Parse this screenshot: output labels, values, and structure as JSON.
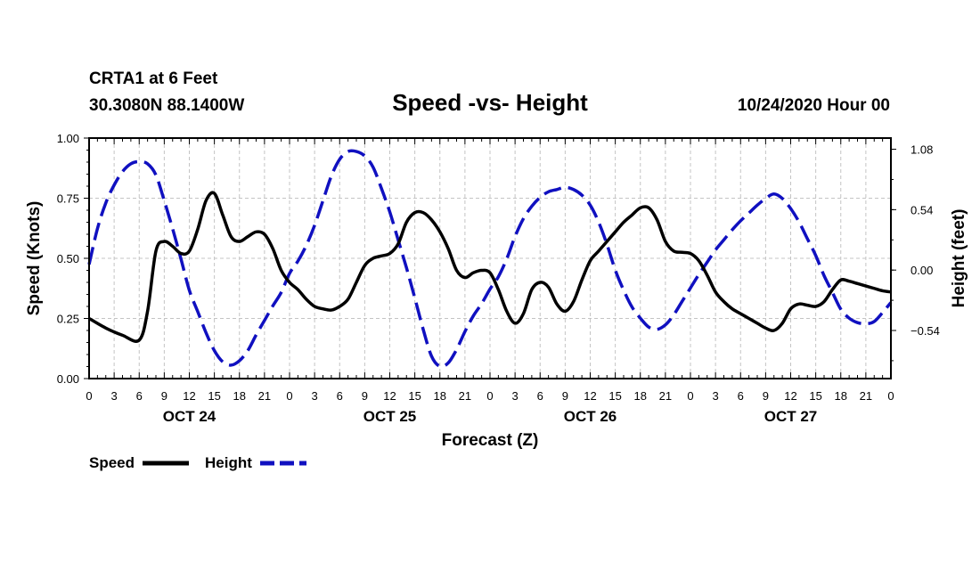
{
  "chart_data": {
    "type": "line",
    "header": {
      "station": "CRTA1 at 6 Feet",
      "coords": "30.3080N 88.1400W",
      "title": "Speed -vs- Height",
      "date": "10/24/2020 Hour 00"
    },
    "xlabel": "Forecast (Z)",
    "ylabel_left": "Speed (Knots)",
    "ylabel_right": "Height (feet)",
    "xlim": [
      0,
      96
    ],
    "ylim_left": [
      0,
      1
    ],
    "ylim_right": [
      -0.97,
      1.18
    ],
    "x_ticks": [
      {
        "x": 0,
        "label": "0"
      },
      {
        "x": 3,
        "label": "3"
      },
      {
        "x": 6,
        "label": "6"
      },
      {
        "x": 9,
        "label": "9"
      },
      {
        "x": 12,
        "label": "12"
      },
      {
        "x": 15,
        "label": "15"
      },
      {
        "x": 18,
        "label": "18"
      },
      {
        "x": 21,
        "label": "21"
      },
      {
        "x": 24,
        "label": "0"
      },
      {
        "x": 27,
        "label": "3"
      },
      {
        "x": 30,
        "label": "6"
      },
      {
        "x": 33,
        "label": "9"
      },
      {
        "x": 36,
        "label": "12"
      },
      {
        "x": 39,
        "label": "15"
      },
      {
        "x": 42,
        "label": "18"
      },
      {
        "x": 45,
        "label": "21"
      },
      {
        "x": 48,
        "label": "0"
      },
      {
        "x": 51,
        "label": "3"
      },
      {
        "x": 54,
        "label": "6"
      },
      {
        "x": 57,
        "label": "9"
      },
      {
        "x": 60,
        "label": "12"
      },
      {
        "x": 63,
        "label": "15"
      },
      {
        "x": 66,
        "label": "18"
      },
      {
        "x": 69,
        "label": "21"
      },
      {
        "x": 72,
        "label": "0"
      },
      {
        "x": 75,
        "label": "3"
      },
      {
        "x": 78,
        "label": "6"
      },
      {
        "x": 81,
        "label": "9"
      },
      {
        "x": 84,
        "label": "12"
      },
      {
        "x": 87,
        "label": "15"
      },
      {
        "x": 90,
        "label": "18"
      },
      {
        "x": 93,
        "label": "21"
      },
      {
        "x": 96,
        "label": "0"
      }
    ],
    "day_labels": [
      {
        "x": 12,
        "label": "OCT 24"
      },
      {
        "x": 36,
        "label": "OCT 25"
      },
      {
        "x": 60,
        "label": "OCT 26"
      },
      {
        "x": 84,
        "label": "OCT 27"
      }
    ],
    "y_ticks_left": [
      {
        "v": 0,
        "label": "0.00"
      },
      {
        "v": 0.25,
        "label": "0.25"
      },
      {
        "v": 0.5,
        "label": "0.50"
      },
      {
        "v": 0.75,
        "label": "0.75"
      },
      {
        "v": 1,
        "label": "1.00"
      }
    ],
    "y_ticks_right": [
      {
        "v": -0.54,
        "label": "−0.54"
      },
      {
        "v": 0,
        "label": "0.00"
      },
      {
        "v": 0.54,
        "label": "0.54"
      },
      {
        "v": 1.08,
        "label": "1.08"
      }
    ],
    "series": [
      {
        "name": "Speed",
        "axis": "left",
        "color": "#000000",
        "style": "solid",
        "points": [
          [
            0,
            0.25
          ],
          [
            2,
            0.21
          ],
          [
            4,
            0.18
          ],
          [
            6,
            0.16
          ],
          [
            7,
            0.28
          ],
          [
            8,
            0.53
          ],
          [
            9,
            0.57
          ],
          [
            10,
            0.55
          ],
          [
            11,
            0.52
          ],
          [
            12,
            0.53
          ],
          [
            13,
            0.62
          ],
          [
            14,
            0.74
          ],
          [
            15,
            0.77
          ],
          [
            16,
            0.68
          ],
          [
            17,
            0.59
          ],
          [
            18,
            0.57
          ],
          [
            19,
            0.59
          ],
          [
            20,
            0.61
          ],
          [
            21,
            0.6
          ],
          [
            22,
            0.54
          ],
          [
            23,
            0.45
          ],
          [
            24,
            0.4
          ],
          [
            25,
            0.37
          ],
          [
            26,
            0.33
          ],
          [
            27,
            0.3
          ],
          [
            28,
            0.29
          ],
          [
            29,
            0.285
          ],
          [
            30,
            0.3
          ],
          [
            31,
            0.33
          ],
          [
            32,
            0.4
          ],
          [
            33,
            0.47
          ],
          [
            34,
            0.5
          ],
          [
            35,
            0.51
          ],
          [
            36,
            0.52
          ],
          [
            37,
            0.56
          ],
          [
            38,
            0.65
          ],
          [
            39,
            0.69
          ],
          [
            40,
            0.69
          ],
          [
            41,
            0.66
          ],
          [
            42,
            0.61
          ],
          [
            43,
            0.54
          ],
          [
            44,
            0.45
          ],
          [
            45,
            0.42
          ],
          [
            46,
            0.44
          ],
          [
            47,
            0.45
          ],
          [
            48,
            0.44
          ],
          [
            49,
            0.37
          ],
          [
            50,
            0.28
          ],
          [
            51,
            0.23
          ],
          [
            52,
            0.27
          ],
          [
            53,
            0.37
          ],
          [
            54,
            0.4
          ],
          [
            55,
            0.38
          ],
          [
            56,
            0.31
          ],
          [
            57,
            0.28
          ],
          [
            58,
            0.32
          ],
          [
            59,
            0.41
          ],
          [
            60,
            0.49
          ],
          [
            61,
            0.53
          ],
          [
            62,
            0.57
          ],
          [
            63,
            0.61
          ],
          [
            64,
            0.65
          ],
          [
            65,
            0.68
          ],
          [
            66,
            0.71
          ],
          [
            67,
            0.71
          ],
          [
            68,
            0.66
          ],
          [
            69,
            0.57
          ],
          [
            70,
            0.53
          ],
          [
            71,
            0.525
          ],
          [
            72,
            0.52
          ],
          [
            73,
            0.49
          ],
          [
            74,
            0.43
          ],
          [
            75,
            0.36
          ],
          [
            76,
            0.32
          ],
          [
            77,
            0.29
          ],
          [
            78,
            0.27
          ],
          [
            79,
            0.25
          ],
          [
            80,
            0.23
          ],
          [
            81,
            0.21
          ],
          [
            82,
            0.2
          ],
          [
            83,
            0.23
          ],
          [
            84,
            0.29
          ],
          [
            85,
            0.31
          ],
          [
            86,
            0.305
          ],
          [
            87,
            0.3
          ],
          [
            88,
            0.32
          ],
          [
            89,
            0.37
          ],
          [
            90,
            0.41
          ],
          [
            91,
            0.405
          ],
          [
            92,
            0.395
          ],
          [
            93,
            0.385
          ],
          [
            94,
            0.375
          ],
          [
            95,
            0.365
          ],
          [
            96,
            0.36
          ]
        ]
      },
      {
        "name": "Height",
        "axis": "right",
        "color": "#1010c0",
        "style": "dashed",
        "points": [
          [
            0,
            0.05
          ],
          [
            1,
            0.37
          ],
          [
            2,
            0.6
          ],
          [
            3,
            0.76
          ],
          [
            4,
            0.88
          ],
          [
            5,
            0.95
          ],
          [
            6,
            0.97
          ],
          [
            7,
            0.95
          ],
          [
            8,
            0.85
          ],
          [
            9,
            0.62
          ],
          [
            10,
            0.37
          ],
          [
            11,
            0.1
          ],
          [
            12,
            -0.18
          ],
          [
            13,
            -0.37
          ],
          [
            14,
            -0.56
          ],
          [
            15,
            -0.72
          ],
          [
            16,
            -0.82
          ],
          [
            17,
            -0.85
          ],
          [
            18,
            -0.81
          ],
          [
            19,
            -0.72
          ],
          [
            20,
            -0.58
          ],
          [
            21,
            -0.45
          ],
          [
            22,
            -0.32
          ],
          [
            23,
            -0.2
          ],
          [
            24,
            -0.03
          ],
          [
            25,
            0.08
          ],
          [
            26,
            0.22
          ],
          [
            27,
            0.4
          ],
          [
            28,
            0.62
          ],
          [
            29,
            0.84
          ],
          [
            30,
            0.99
          ],
          [
            31,
            1.06
          ],
          [
            32,
            1.06
          ],
          [
            33,
            1.02
          ],
          [
            34,
            0.92
          ],
          [
            35,
            0.73
          ],
          [
            36,
            0.52
          ],
          [
            37,
            0.27
          ],
          [
            38,
            0.02
          ],
          [
            39,
            -0.25
          ],
          [
            40,
            -0.53
          ],
          [
            41,
            -0.77
          ],
          [
            42,
            -0.86
          ],
          [
            43,
            -0.83
          ],
          [
            44,
            -0.71
          ],
          [
            45,
            -0.55
          ],
          [
            46,
            -0.41
          ],
          [
            47,
            -0.3
          ],
          [
            48,
            -0.17
          ],
          [
            49,
            -0.06
          ],
          [
            50,
            0.1
          ],
          [
            51,
            0.3
          ],
          [
            52,
            0.46
          ],
          [
            53,
            0.57
          ],
          [
            54,
            0.65
          ],
          [
            55,
            0.7
          ],
          [
            56,
            0.72
          ],
          [
            57,
            0.74
          ],
          [
            58,
            0.72
          ],
          [
            59,
            0.67
          ],
          [
            60,
            0.58
          ],
          [
            61,
            0.43
          ],
          [
            62,
            0.23
          ],
          [
            63,
            0.0
          ],
          [
            64,
            -0.18
          ],
          [
            65,
            -0.33
          ],
          [
            66,
            -0.43
          ],
          [
            67,
            -0.51
          ],
          [
            68,
            -0.53
          ],
          [
            69,
            -0.49
          ],
          [
            70,
            -0.4
          ],
          [
            71,
            -0.28
          ],
          [
            72,
            -0.16
          ],
          [
            73,
            -0.04
          ],
          [
            74,
            0.07
          ],
          [
            75,
            0.18
          ],
          [
            76,
            0.27
          ],
          [
            77,
            0.36
          ],
          [
            78,
            0.44
          ],
          [
            79,
            0.51
          ],
          [
            80,
            0.58
          ],
          [
            81,
            0.64
          ],
          [
            82,
            0.68
          ],
          [
            83,
            0.64
          ],
          [
            84,
            0.55
          ],
          [
            85,
            0.43
          ],
          [
            86,
            0.28
          ],
          [
            87,
            0.13
          ],
          [
            88,
            -0.05
          ],
          [
            89,
            -0.2
          ],
          [
            90,
            -0.35
          ],
          [
            91,
            -0.43
          ],
          [
            92,
            -0.47
          ],
          [
            93,
            -0.48
          ],
          [
            94,
            -0.46
          ],
          [
            95,
            -0.38
          ],
          [
            96,
            -0.29
          ]
        ]
      }
    ],
    "legend": [
      {
        "label": "Speed",
        "color": "#000000",
        "style": "solid"
      },
      {
        "label": "Height",
        "color": "#1010c0",
        "style": "dashed"
      }
    ]
  }
}
